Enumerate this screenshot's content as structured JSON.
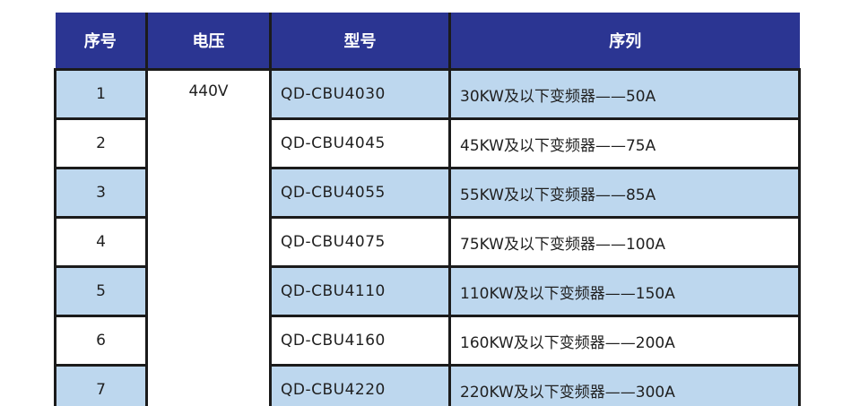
{
  "table": {
    "headers": [
      "序号",
      "电压",
      "型号",
      "序列"
    ],
    "voltage": "440V",
    "rows": [
      {
        "no": "1",
        "model": "QD-CBU4030",
        "series": "30KW及以下变频器——50A"
      },
      {
        "no": "2",
        "model": "QD-CBU4045",
        "series": "45KW及以下变频器——75A"
      },
      {
        "no": "3",
        "model": "QD-CBU4055",
        "series": "55KW及以下变频器——85A"
      },
      {
        "no": "4",
        "model": "QD-CBU4075",
        "series": "75KW及以下变频器——100A"
      },
      {
        "no": "5",
        "model": "QD-CBU4110",
        "series": "110KW及以下变频器——150A"
      },
      {
        "no": "6",
        "model": "QD-CBU4160",
        "series": "160KW及以下变频器——200A"
      },
      {
        "no": "7",
        "model": "QD-CBU4220",
        "series": "220KW及以下变频器——300A"
      }
    ],
    "colors": {
      "header_bg": "#2B3592",
      "header_text": "#FFFFFF",
      "row_alt_bg": "#BDD7EE",
      "row_bg": "#FFFFFF",
      "grid_border": "#1B1B1B",
      "bottom_accent": "#2B3592"
    }
  }
}
